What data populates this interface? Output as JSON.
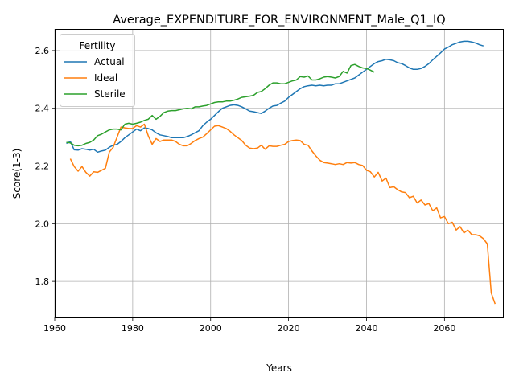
{
  "chart_data": {
    "type": "line",
    "title": "Average_EXPENDITURE_FOR_ENVIRONMENT_Male_Q1_IQ",
    "xlabel": "Years",
    "ylabel": "Score(1-3)",
    "xlim": [
      1960,
      2075
    ],
    "ylim": [
      1.675,
      2.675
    ],
    "xticks": [
      1960,
      1980,
      2000,
      2020,
      2040,
      2060
    ],
    "yticks": [
      1.8,
      2.0,
      2.2,
      2.4,
      2.6
    ],
    "xtick_labels": [
      "1960",
      "1980",
      "2000",
      "2020",
      "2040",
      "2060"
    ],
    "ytick_labels": [
      "1.8",
      "2.0",
      "2.2",
      "2.4",
      "2.6"
    ],
    "grid": true,
    "legend": {
      "title": "Fertility",
      "position": "top-left"
    },
    "series": [
      {
        "name": "Actual",
        "color": "#1f77b4",
        "points": [
          [
            1963,
            2.278
          ],
          [
            1964,
            2.285
          ],
          [
            1965,
            2.256
          ],
          [
            1966,
            2.255
          ],
          [
            1967,
            2.26
          ],
          [
            1968,
            2.258
          ],
          [
            1969,
            2.255
          ],
          [
            1970,
            2.258
          ],
          [
            1971,
            2.248
          ],
          [
            1972,
            2.252
          ],
          [
            1973,
            2.255
          ],
          [
            1974,
            2.265
          ],
          [
            1975,
            2.272
          ],
          [
            1976,
            2.275
          ],
          [
            1977,
            2.285
          ],
          [
            1978,
            2.298
          ],
          [
            1979,
            2.308
          ],
          [
            1980,
            2.318
          ],
          [
            1981,
            2.328
          ],
          [
            1982,
            2.322
          ],
          [
            1983,
            2.332
          ],
          [
            1984,
            2.33
          ],
          [
            1985,
            2.325
          ],
          [
            1986,
            2.315
          ],
          [
            1987,
            2.308
          ],
          [
            1988,
            2.305
          ],
          [
            1989,
            2.302
          ],
          [
            1990,
            2.298
          ],
          [
            1991,
            2.298
          ],
          [
            1992,
            2.298
          ],
          [
            1993,
            2.298
          ],
          [
            1994,
            2.302
          ],
          [
            1995,
            2.308
          ],
          [
            1996,
            2.315
          ],
          [
            1997,
            2.322
          ],
          [
            1998,
            2.34
          ],
          [
            1999,
            2.352
          ],
          [
            2000,
            2.362
          ],
          [
            2001,
            2.375
          ],
          [
            2002,
            2.388
          ],
          [
            2003,
            2.4
          ],
          [
            2004,
            2.405
          ],
          [
            2005,
            2.41
          ],
          [
            2006,
            2.412
          ],
          [
            2007,
            2.41
          ],
          [
            2008,
            2.405
          ],
          [
            2009,
            2.398
          ],
          [
            2010,
            2.39
          ],
          [
            2011,
            2.388
          ],
          [
            2012,
            2.385
          ],
          [
            2013,
            2.382
          ],
          [
            2014,
            2.39
          ],
          [
            2015,
            2.4
          ],
          [
            2016,
            2.408
          ],
          [
            2017,
            2.41
          ],
          [
            2018,
            2.418
          ],
          [
            2019,
            2.425
          ],
          [
            2020,
            2.438
          ],
          [
            2021,
            2.448
          ],
          [
            2022,
            2.458
          ],
          [
            2023,
            2.468
          ],
          [
            2024,
            2.475
          ],
          [
            2025,
            2.478
          ],
          [
            2026,
            2.48
          ],
          [
            2027,
            2.478
          ],
          [
            2028,
            2.48
          ],
          [
            2029,
            2.478
          ],
          [
            2030,
            2.48
          ],
          [
            2031,
            2.48
          ],
          [
            2032,
            2.485
          ],
          [
            2033,
            2.485
          ],
          [
            2034,
            2.49
          ],
          [
            2035,
            2.495
          ],
          [
            2036,
            2.5
          ],
          [
            2037,
            2.505
          ],
          [
            2038,
            2.515
          ],
          [
            2039,
            2.525
          ],
          [
            2040,
            2.535
          ],
          [
            2041,
            2.545
          ],
          [
            2042,
            2.555
          ],
          [
            2043,
            2.562
          ],
          [
            2044,
            2.565
          ],
          [
            2045,
            2.57
          ],
          [
            2046,
            2.568
          ],
          [
            2047,
            2.565
          ],
          [
            2048,
            2.558
          ],
          [
            2049,
            2.555
          ],
          [
            2050,
            2.548
          ],
          [
            2051,
            2.54
          ],
          [
            2052,
            2.535
          ],
          [
            2053,
            2.535
          ],
          [
            2054,
            2.538
          ],
          [
            2055,
            2.545
          ],
          [
            2056,
            2.555
          ],
          [
            2057,
            2.568
          ],
          [
            2058,
            2.58
          ],
          [
            2059,
            2.592
          ],
          [
            2060,
            2.605
          ],
          [
            2061,
            2.612
          ],
          [
            2062,
            2.62
          ],
          [
            2063,
            2.625
          ],
          [
            2064,
            2.63
          ],
          [
            2065,
            2.632
          ],
          [
            2066,
            2.632
          ],
          [
            2067,
            2.63
          ],
          [
            2068,
            2.626
          ],
          [
            2069,
            2.62
          ],
          [
            2070,
            2.616
          ]
        ]
      },
      {
        "name": "Ideal",
        "color": "#ff7f0e",
        "points": [
          [
            1964,
            2.225
          ],
          [
            1965,
            2.198
          ],
          [
            1966,
            2.182
          ],
          [
            1967,
            2.198
          ],
          [
            1968,
            2.178
          ],
          [
            1969,
            2.165
          ],
          [
            1970,
            2.18
          ],
          [
            1971,
            2.178
          ],
          [
            1972,
            2.185
          ],
          [
            1973,
            2.192
          ],
          [
            1974,
            2.248
          ],
          [
            1975,
            2.265
          ],
          [
            1976,
            2.3
          ],
          [
            1977,
            2.335
          ],
          [
            1978,
            2.332
          ],
          [
            1979,
            2.33
          ],
          [
            1980,
            2.33
          ],
          [
            1981,
            2.34
          ],
          [
            1982,
            2.335
          ],
          [
            1983,
            2.345
          ],
          [
            1984,
            2.305
          ],
          [
            1985,
            2.275
          ],
          [
            1986,
            2.295
          ],
          [
            1987,
            2.285
          ],
          [
            1988,
            2.29
          ],
          [
            1989,
            2.29
          ],
          [
            1990,
            2.29
          ],
          [
            1991,
            2.285
          ],
          [
            1992,
            2.275
          ],
          [
            1993,
            2.27
          ],
          [
            1994,
            2.27
          ],
          [
            1995,
            2.278
          ],
          [
            1996,
            2.288
          ],
          [
            1997,
            2.295
          ],
          [
            1998,
            2.3
          ],
          [
            1999,
            2.312
          ],
          [
            2000,
            2.325
          ],
          [
            2001,
            2.338
          ],
          [
            2002,
            2.34
          ],
          [
            2003,
            2.335
          ],
          [
            2004,
            2.33
          ],
          [
            2005,
            2.32
          ],
          [
            2006,
            2.308
          ],
          [
            2007,
            2.298
          ],
          [
            2008,
            2.288
          ],
          [
            2009,
            2.272
          ],
          [
            2010,
            2.262
          ],
          [
            2011,
            2.26
          ],
          [
            2012,
            2.262
          ],
          [
            2013,
            2.272
          ],
          [
            2014,
            2.258
          ],
          [
            2015,
            2.27
          ],
          [
            2016,
            2.268
          ],
          [
            2017,
            2.268
          ],
          [
            2018,
            2.272
          ],
          [
            2019,
            2.275
          ],
          [
            2020,
            2.285
          ],
          [
            2021,
            2.288
          ],
          [
            2022,
            2.29
          ],
          [
            2023,
            2.288
          ],
          [
            2024,
            2.275
          ],
          [
            2025,
            2.272
          ],
          [
            2026,
            2.252
          ],
          [
            2027,
            2.235
          ],
          [
            2028,
            2.22
          ],
          [
            2029,
            2.212
          ],
          [
            2030,
            2.21
          ],
          [
            2031,
            2.208
          ],
          [
            2032,
            2.205
          ],
          [
            2033,
            2.208
          ],
          [
            2034,
            2.205
          ],
          [
            2035,
            2.212
          ],
          [
            2036,
            2.21
          ],
          [
            2037,
            2.212
          ],
          [
            2038,
            2.205
          ],
          [
            2039,
            2.202
          ],
          [
            2040,
            2.185
          ],
          [
            2041,
            2.18
          ],
          [
            2042,
            2.162
          ],
          [
            2043,
            2.178
          ],
          [
            2044,
            2.148
          ],
          [
            2045,
            2.158
          ],
          [
            2046,
            2.125
          ],
          [
            2047,
            2.128
          ],
          [
            2048,
            2.118
          ],
          [
            2049,
            2.11
          ],
          [
            2050,
            2.108
          ],
          [
            2051,
            2.09
          ],
          [
            2052,
            2.095
          ],
          [
            2053,
            2.072
          ],
          [
            2054,
            2.082
          ],
          [
            2055,
            2.065
          ],
          [
            2056,
            2.07
          ],
          [
            2057,
            2.045
          ],
          [
            2058,
            2.055
          ],
          [
            2059,
            2.02
          ],
          [
            2060,
            2.025
          ],
          [
            2061,
            2.0
          ],
          [
            2062,
            2.005
          ],
          [
            2063,
            1.978
          ],
          [
            2064,
            1.99
          ],
          [
            2065,
            1.968
          ],
          [
            2066,
            1.978
          ],
          [
            2067,
            1.962
          ],
          [
            2068,
            1.962
          ],
          [
            2069,
            1.958
          ],
          [
            2070,
            1.948
          ],
          [
            2071,
            1.93
          ],
          [
            2072,
            1.76
          ],
          [
            2073,
            1.722
          ]
        ]
      },
      {
        "name": "Sterile",
        "color": "#2ca02c",
        "points": [
          [
            1963,
            2.282
          ],
          [
            1964,
            2.28
          ],
          [
            1965,
            2.272
          ],
          [
            1966,
            2.27
          ],
          [
            1967,
            2.272
          ],
          [
            1968,
            2.278
          ],
          [
            1969,
            2.282
          ],
          [
            1970,
            2.29
          ],
          [
            1971,
            2.305
          ],
          [
            1972,
            2.31
          ],
          [
            1973,
            2.318
          ],
          [
            1974,
            2.325
          ],
          [
            1975,
            2.328
          ],
          [
            1976,
            2.328
          ],
          [
            1977,
            2.325
          ],
          [
            1978,
            2.345
          ],
          [
            1979,
            2.348
          ],
          [
            1980,
            2.345
          ],
          [
            1981,
            2.348
          ],
          [
            1982,
            2.352
          ],
          [
            1983,
            2.358
          ],
          [
            1984,
            2.362
          ],
          [
            1985,
            2.375
          ],
          [
            1986,
            2.362
          ],
          [
            1987,
            2.372
          ],
          [
            1988,
            2.385
          ],
          [
            1989,
            2.39
          ],
          [
            1990,
            2.392
          ],
          [
            1991,
            2.392
          ],
          [
            1992,
            2.395
          ],
          [
            1993,
            2.398
          ],
          [
            1994,
            2.4
          ],
          [
            1995,
            2.398
          ],
          [
            1996,
            2.405
          ],
          [
            1997,
            2.405
          ],
          [
            1998,
            2.408
          ],
          [
            1999,
            2.41
          ],
          [
            2000,
            2.415
          ],
          [
            2001,
            2.42
          ],
          [
            2002,
            2.422
          ],
          [
            2003,
            2.422
          ],
          [
            2004,
            2.425
          ],
          [
            2005,
            2.425
          ],
          [
            2006,
            2.428
          ],
          [
            2007,
            2.432
          ],
          [
            2008,
            2.438
          ],
          [
            2009,
            2.44
          ],
          [
            2010,
            2.442
          ],
          [
            2011,
            2.445
          ],
          [
            2012,
            2.455
          ],
          [
            2013,
            2.458
          ],
          [
            2014,
            2.468
          ],
          [
            2015,
            2.48
          ],
          [
            2016,
            2.488
          ],
          [
            2017,
            2.488
          ],
          [
            2018,
            2.485
          ],
          [
            2019,
            2.485
          ],
          [
            2020,
            2.49
          ],
          [
            2021,
            2.495
          ],
          [
            2022,
            2.498
          ],
          [
            2023,
            2.51
          ],
          [
            2024,
            2.508
          ],
          [
            2025,
            2.512
          ],
          [
            2026,
            2.498
          ],
          [
            2027,
            2.498
          ],
          [
            2028,
            2.502
          ],
          [
            2029,
            2.508
          ],
          [
            2030,
            2.51
          ],
          [
            2031,
            2.508
          ],
          [
            2032,
            2.505
          ],
          [
            2033,
            2.51
          ],
          [
            2034,
            2.528
          ],
          [
            2035,
            2.522
          ],
          [
            2036,
            2.548
          ],
          [
            2037,
            2.552
          ],
          [
            2038,
            2.545
          ],
          [
            2039,
            2.54
          ],
          [
            2040,
            2.538
          ],
          [
            2041,
            2.532
          ],
          [
            2042,
            2.525
          ]
        ]
      }
    ]
  }
}
